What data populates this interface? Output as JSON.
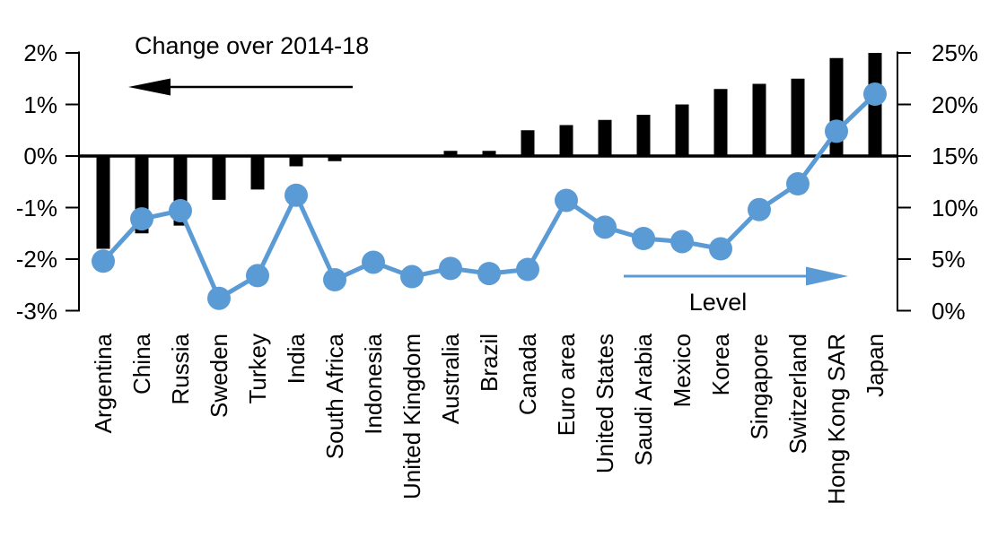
{
  "chart_data": {
    "type": "bar",
    "subtype": "dual-axis bar + line",
    "title": "",
    "categories": [
      "Argentina",
      "China",
      "Russia",
      "Sweden",
      "Turkey",
      "India",
      "South Africa",
      "Indonesia",
      "United Kingdom",
      "Australia",
      "Brazil",
      "Canada",
      "Euro area",
      "United States",
      "Saudi Arabia",
      "Mexico",
      "Korea",
      "Singapore",
      "Switzerland",
      "Hong Kong SAR",
      "Japan"
    ],
    "series": [
      {
        "name": "Change over 2014-18",
        "type": "bar",
        "axis": "left",
        "unit": "%",
        "color": "#000000",
        "values": [
          -1.8,
          -1.5,
          -1.35,
          -0.85,
          -0.65,
          -0.2,
          -0.1,
          0,
          0,
          0.1,
          0.1,
          0.5,
          0.6,
          0.7,
          0.8,
          1.0,
          1.3,
          1.4,
          1.5,
          1.9,
          2.0
        ]
      },
      {
        "name": "Level",
        "type": "line",
        "axis": "right",
        "unit": "%",
        "color": "#5B9BD5",
        "values": [
          4.8,
          8.9,
          9.7,
          1.2,
          3.4,
          11.2,
          3.0,
          4.7,
          3.3,
          4.1,
          3.6,
          4.0,
          10.7,
          8.1,
          7.0,
          6.7,
          6.0,
          9.8,
          12.3,
          17.4,
          21.0
        ]
      }
    ],
    "left_axis": {
      "min": -3,
      "max": 2,
      "unit": "%",
      "tick_values": [
        2,
        1,
        0,
        -1,
        -2,
        -3
      ],
      "tick_labels": [
        "2%",
        "1%",
        "0%",
        "-1%",
        "-2%",
        "-3%"
      ]
    },
    "right_axis": {
      "min": 0,
      "max": 25,
      "unit": "%",
      "tick_values": [
        25,
        20,
        15,
        10,
        5,
        0
      ],
      "tick_labels": [
        "25%",
        "20%",
        "15%",
        "10%",
        "5%",
        "0%"
      ]
    },
    "annotations": {
      "bar_series_label": "Change over 2014-18",
      "line_series_label": "Level",
      "bar_arrow_direction": "left",
      "line_arrow_direction": "right"
    },
    "grid": false,
    "legend_position": "in-plot text annotations with arrows"
  }
}
